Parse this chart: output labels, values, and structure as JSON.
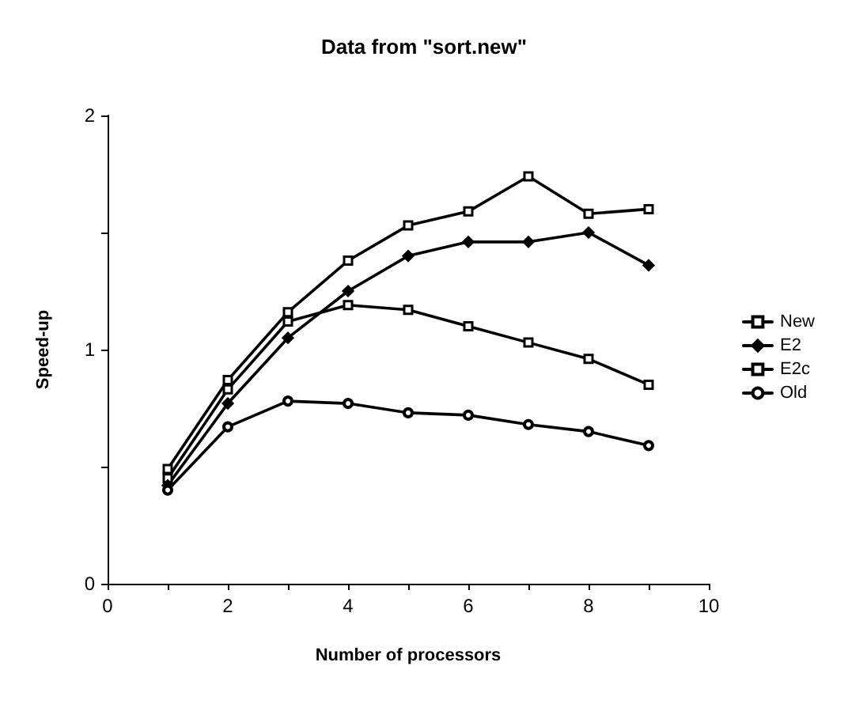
{
  "chart_data": {
    "type": "line",
    "title": "Data from \"sort.new\"",
    "xlabel": "Number of processors",
    "ylabel": "Speed-up",
    "x": [
      1,
      2,
      3,
      4,
      5,
      6,
      7,
      8,
      9
    ],
    "series": [
      {
        "name": "New",
        "color": "#000000",
        "marker": "square",
        "values": [
          0.45,
          0.83,
          1.12,
          1.19,
          1.17,
          1.1,
          1.03,
          0.96,
          0.85
        ]
      },
      {
        "name": "E2",
        "color": "#000000",
        "marker": "diamond",
        "values": [
          0.42,
          0.77,
          1.05,
          1.25,
          1.4,
          1.46,
          1.46,
          1.5,
          1.36
        ]
      },
      {
        "name": "E2c",
        "color": "#000000",
        "marker": "square",
        "values": [
          0.49,
          0.87,
          1.16,
          1.38,
          1.53,
          1.59,
          1.74,
          1.58,
          1.6
        ]
      },
      {
        "name": "Old",
        "color": "#000000",
        "marker": "circle",
        "values": [
          0.4,
          0.67,
          0.78,
          0.77,
          0.73,
          0.72,
          0.68,
          0.65,
          0.59
        ]
      }
    ],
    "xlim": [
      0,
      10
    ],
    "xticks": [
      0,
      {
        "value": 1,
        "label": null
      },
      2,
      {
        "value": 3,
        "label": null
      },
      4,
      {
        "value": 5,
        "label": null
      },
      6,
      {
        "value": 7,
        "label": null
      },
      8,
      {
        "value": 9,
        "label": null
      },
      10
    ],
    "ylim": [
      0,
      2
    ],
    "yticks": [
      0,
      {
        "value": 0.5,
        "label": null
      },
      1,
      {
        "value": 1.5,
        "label": null
      },
      2
    ],
    "legend": "right",
    "grid": false,
    "line_style": "solid"
  }
}
